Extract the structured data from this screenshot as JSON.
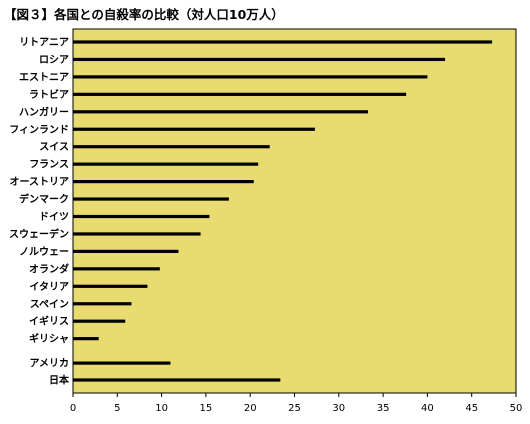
{
  "chart_data": {
    "type": "bar",
    "orientation": "horizontal",
    "title": "【図３】各国との自殺率の比較（対人口10万人）",
    "categories": [
      "リトアニア",
      "ロシア",
      "エストニア",
      "ラトビア",
      "ハンガリー",
      "フィンランド",
      "スイス",
      "フランス",
      "オーストリア",
      "デンマーク",
      "ドイツ",
      "スウェーデン",
      "ノルウェー",
      "オランダ",
      "イタリア",
      "スペイン",
      "イギリス",
      "ギリシャ",
      "アメリカ",
      "日本"
    ],
    "values": [
      47.3,
      42.0,
      40.0,
      37.6,
      33.3,
      27.3,
      22.2,
      20.9,
      20.4,
      17.6,
      15.4,
      14.4,
      11.9,
      9.8,
      8.4,
      6.6,
      5.9,
      2.9,
      11.0,
      23.4
    ],
    "xlim": [
      0,
      50
    ],
    "xticks": [
      "0",
      "5",
      "10",
      "15",
      "20",
      "25",
      "30",
      "35",
      "40",
      "45",
      "50"
    ],
    "grid": false,
    "bar_color": "#000000",
    "plot_bg": "#e8dc70"
  }
}
